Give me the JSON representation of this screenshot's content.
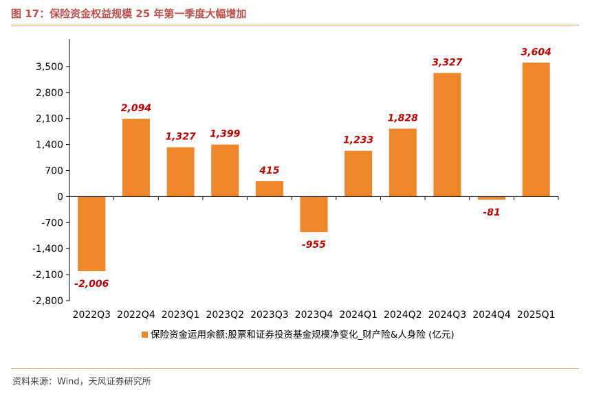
{
  "figure": {
    "title": "图 17：保险资金权益规模 25 年第一季度大幅增加",
    "source": "资料来源：Wind，天风证券研究所"
  },
  "colors": {
    "bar": "#f0862a",
    "data_label": "#c00000",
    "axis": "#000000",
    "title": "#c0504d",
    "rule": "#e0a060"
  },
  "chart_data": {
    "type": "bar",
    "title": "",
    "xlabel": "",
    "ylabel": "",
    "categories": [
      "2022Q3",
      "2022Q4",
      "2023Q1",
      "2023Q2",
      "2023Q3",
      "2023Q4",
      "2024Q1",
      "2024Q2",
      "2024Q3",
      "2024Q4",
      "2025Q1"
    ],
    "series": [
      {
        "name": "保险资金运用余额:股票和证券投资基金规模净变化_财产险&人身险 (亿元)",
        "values": [
          -2006,
          2094,
          1327,
          1399,
          415,
          -955,
          1233,
          1828,
          3327,
          -81,
          3604
        ],
        "labels": [
          "-2,006",
          "2,094",
          "1,327",
          "1,399",
          "415",
          "-955",
          "1,233",
          "1,828",
          "3,327",
          "-81",
          "3,604"
        ]
      }
    ],
    "ylim": [
      -2800,
      4200
    ],
    "yticks": [
      -2800,
      -2100,
      -1400,
      -700,
      0,
      700,
      1400,
      2100,
      2800,
      3500
    ],
    "ytick_labels": [
      "-2,800",
      "-2,100",
      "-1,400",
      "-700",
      "0",
      "700",
      "1,400",
      "2,100",
      "2,800",
      "3,500"
    ],
    "legend_position": "bottom",
    "grid": false
  }
}
